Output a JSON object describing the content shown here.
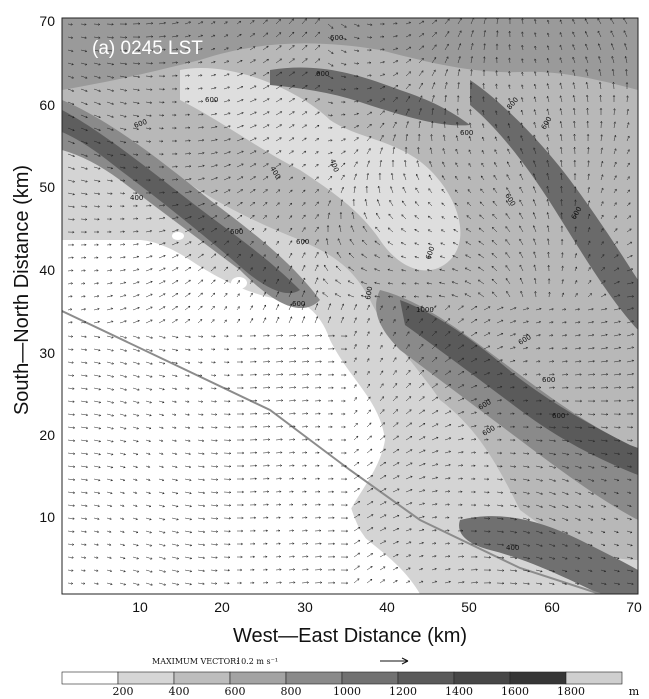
{
  "panel_label": "(a) 0245 LST",
  "x_axis": {
    "label": "West—East Distance (km)",
    "ticks": [
      "10",
      "20",
      "30",
      "40",
      "50",
      "60",
      "70"
    ]
  },
  "y_axis": {
    "label": "South—North Distance (km)",
    "ticks": [
      "10",
      "20",
      "30",
      "40",
      "50",
      "60",
      "70"
    ]
  },
  "contour_labels": [
    "400",
    "600",
    "800",
    "1000"
  ],
  "max_vector": {
    "label": "MAXIMUM VECTOR:",
    "value": "10.2 m s⁻¹"
  },
  "colorbar": {
    "ticks": [
      "200",
      "400",
      "600",
      "800",
      "1000",
      "1200",
      "1400",
      "1600",
      "1800"
    ],
    "unit": "m",
    "colors": [
      "#ffffff",
      "#d6d6d6",
      "#bdbdbd",
      "#a3a3a3",
      "#8a8a8a",
      "#717171",
      "#5a5a5a",
      "#474747",
      "#363636",
      "#cfcfcf"
    ]
  }
}
